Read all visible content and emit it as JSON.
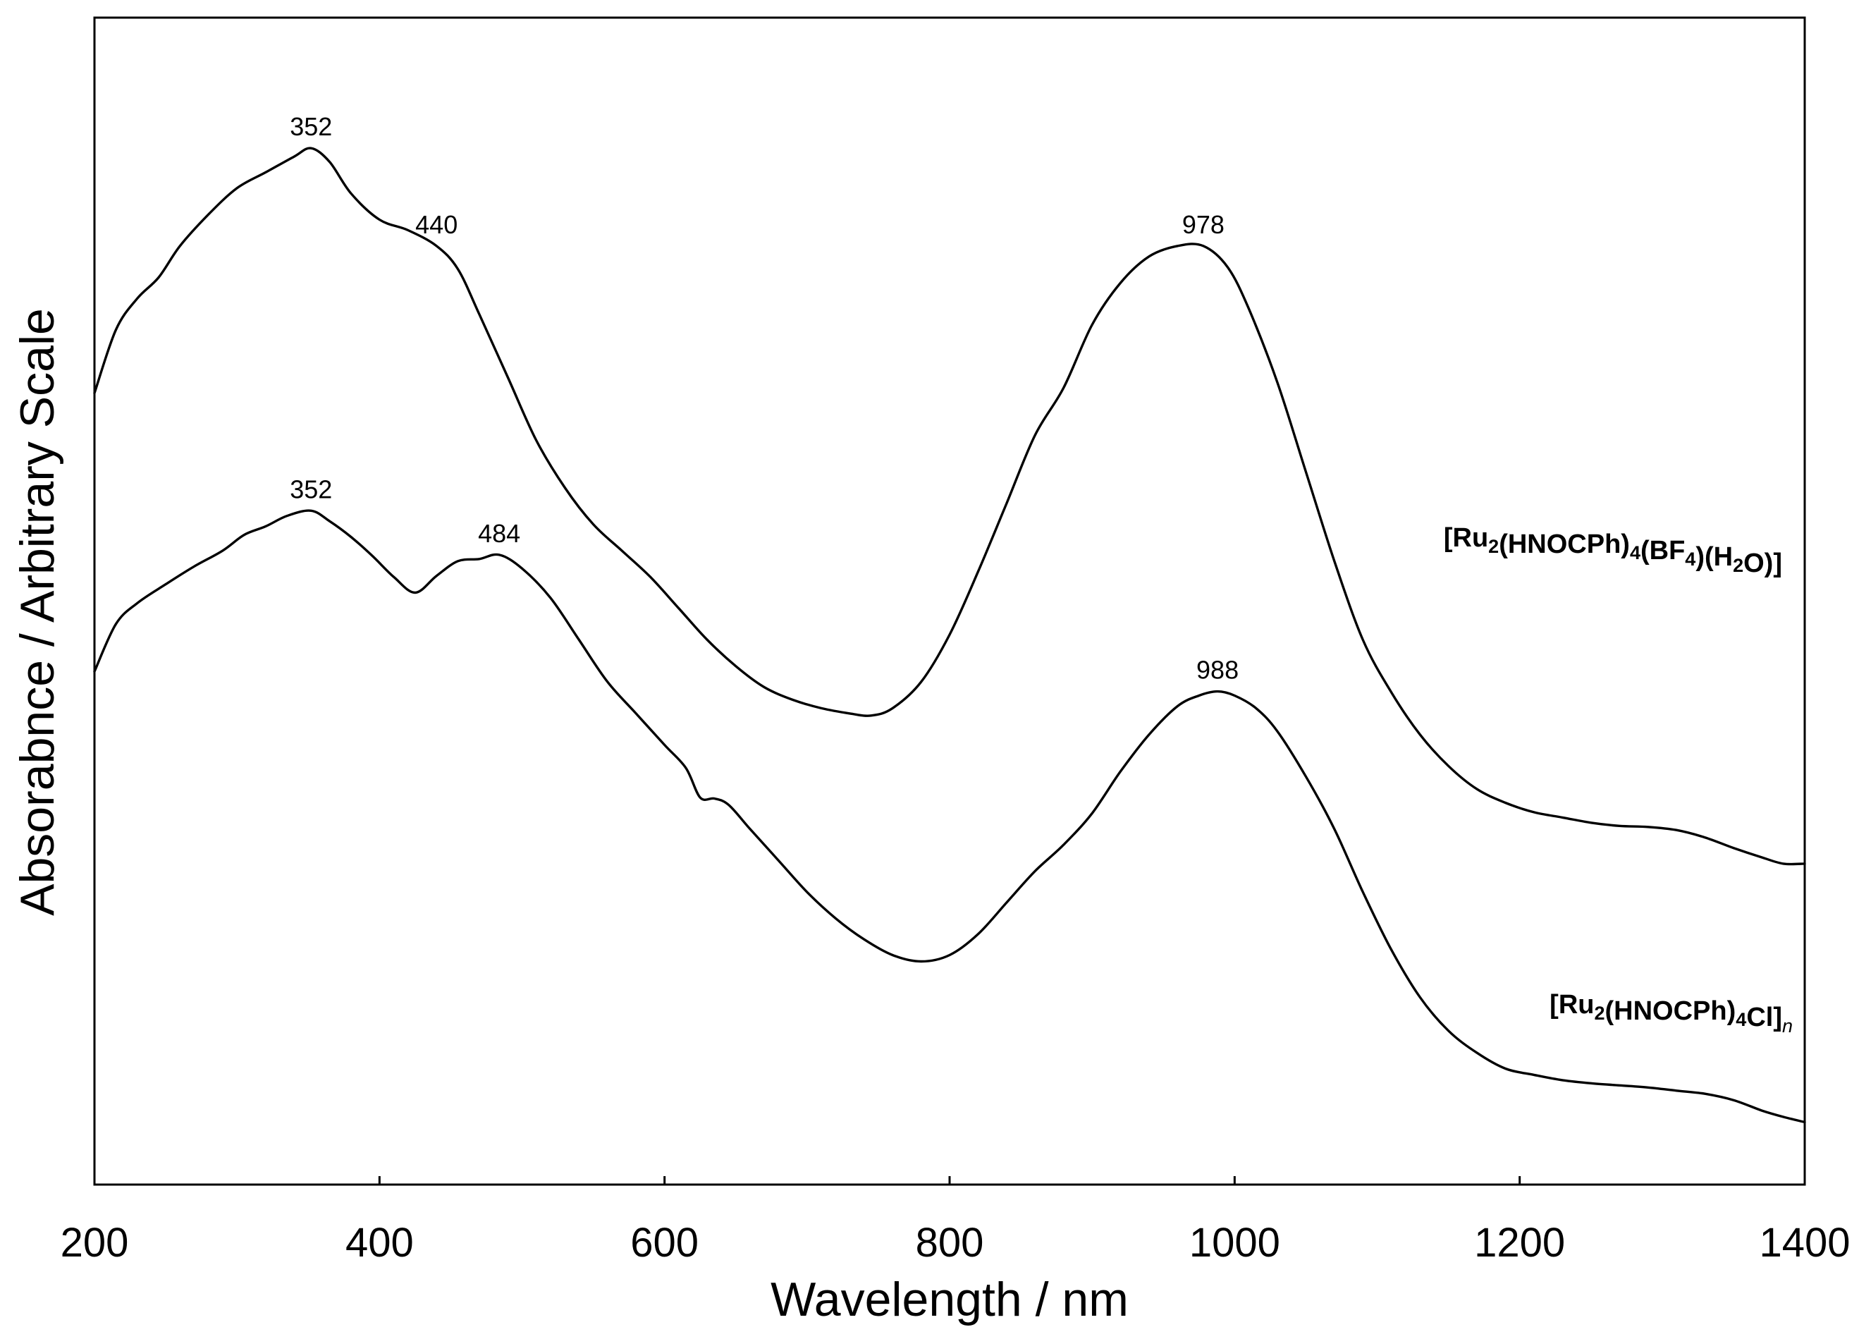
{
  "chart_data": {
    "type": "line",
    "title": "",
    "xlabel": "Wavelength / nm",
    "ylabel": "Absorabnce / Arbitrary Scale",
    "xlim": [
      200,
      1400
    ],
    "ylim": [
      0,
      100
    ],
    "x_ticks": [
      200,
      400,
      600,
      800,
      1000,
      1200,
      1400
    ],
    "y_ticks_shown": false,
    "grid": false,
    "series": [
      {
        "name": "[Ru2(HNOCPh)4(BF4)(H2O)]",
        "label_parts": [
          {
            "t": "[Ru",
            "s": "n"
          },
          {
            "t": "2",
            "s": "sub"
          },
          {
            "t": "(HNOCPh)",
            "s": "n"
          },
          {
            "t": "4",
            "s": "sub"
          },
          {
            "t": "(BF",
            "s": "n"
          },
          {
            "t": "4",
            "s": "sub"
          },
          {
            "t": ")(H",
            "s": "n"
          },
          {
            "t": "2",
            "s": "sub"
          },
          {
            "t": "O)]",
            "s": "n"
          }
        ],
        "x": [
          200,
          215,
          230,
          245,
          260,
          280,
          300,
          320,
          340,
          352,
          365,
          380,
          400,
          420,
          440,
          455,
          470,
          490,
          510,
          530,
          550,
          570,
          590,
          610,
          630,
          650,
          670,
          690,
          710,
          730,
          745,
          760,
          780,
          800,
          820,
          840,
          860,
          880,
          900,
          920,
          940,
          960,
          978,
          995,
          1010,
          1030,
          1050,
          1070,
          1090,
          1110,
          1130,
          1150,
          1170,
          1190,
          1210,
          1230,
          1250,
          1270,
          1290,
          1310,
          1330,
          1350,
          1370,
          1385,
          1400
        ],
        "values": [
          74,
          80,
          83,
          85,
          88,
          91,
          93.5,
          95,
          96.5,
          97.3,
          96,
          93,
          90.5,
          89.5,
          88,
          85.8,
          81.5,
          75.5,
          69.5,
          65,
          61.5,
          59,
          56.5,
          53.5,
          50.5,
          48,
          46,
          44.8,
          44,
          43.5,
          43.3,
          44,
          46.5,
          51,
          57,
          63.5,
          70,
          74.5,
          80.5,
          84.5,
          87,
          88,
          88,
          86,
          82,
          75,
          66.5,
          58,
          50.5,
          45.5,
          41.5,
          38.5,
          36.3,
          35,
          34.1,
          33.6,
          33.1,
          32.8,
          32.7,
          32.4,
          31.7,
          30.7,
          29.8,
          29.2,
          29.2
        ]
      },
      {
        "name": "[Ru2(HNOCPh)4Cl]n",
        "label_parts": [
          {
            "t": "[Ru",
            "s": "n"
          },
          {
            "t": "2",
            "s": "sub"
          },
          {
            "t": "(HNOCPh)",
            "s": "n"
          },
          {
            "t": "4",
            "s": "sub"
          },
          {
            "t": "Cl]",
            "s": "n"
          },
          {
            "t": "n",
            "s": "isub"
          }
        ],
        "x": [
          200,
          215,
          230,
          250,
          270,
          290,
          305,
          320,
          335,
          352,
          365,
          380,
          395,
          410,
          425,
          440,
          455,
          470,
          484,
          500,
          520,
          540,
          560,
          580,
          600,
          615,
          625,
          635,
          645,
          660,
          680,
          700,
          720,
          740,
          760,
          780,
          800,
          820,
          840,
          860,
          880,
          900,
          920,
          940,
          960,
          975,
          988,
          1000,
          1015,
          1030,
          1050,
          1070,
          1090,
          1110,
          1130,
          1150,
          1170,
          1190,
          1210,
          1230,
          1250,
          1270,
          1290,
          1310,
          1330,
          1350,
          1370,
          1385,
          1400
        ],
        "values": [
          47.5,
          52,
          54,
          55.8,
          57.5,
          59,
          60.5,
          61.3,
          62.3,
          62.8,
          61.8,
          60.3,
          58.5,
          56.5,
          55,
          56.6,
          58,
          58.2,
          58.6,
          57.3,
          54.5,
          50.5,
          46.5,
          43.5,
          40.5,
          38.3,
          35.5,
          35.4,
          34.8,
          32.5,
          29.5,
          26.5,
          24,
          22,
          20.5,
          19.9,
          20.5,
          22.5,
          25.5,
          28.5,
          31,
          34,
          38,
          41.5,
          44.2,
          45.2,
          45.6,
          45.2,
          44,
          41.8,
          37.5,
          32.5,
          26.5,
          21,
          16.5,
          13.3,
          11.2,
          9.7,
          9.1,
          8.6,
          8.3,
          8.1,
          7.9,
          7.6,
          7.3,
          6.7,
          5.7,
          5.1,
          4.6
        ]
      }
    ],
    "annotations": [
      {
        "text": "352",
        "x": 352,
        "y": 97.3
      },
      {
        "text": "440",
        "x": 440,
        "y": 88
      },
      {
        "text": "978",
        "x": 978,
        "y": 88
      },
      {
        "text": "352",
        "x": 352,
        "y": 62.8
      },
      {
        "text": "484",
        "x": 484,
        "y": 58.6
      },
      {
        "text": "988",
        "x": 988,
        "y": 45.6
      }
    ]
  }
}
